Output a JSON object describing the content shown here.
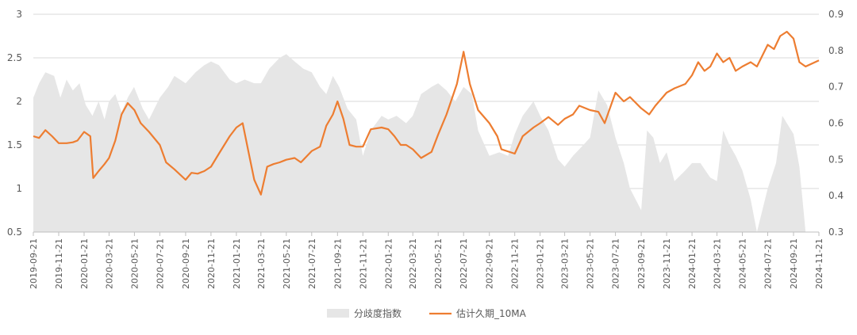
{
  "chart_data": {
    "type": "line",
    "title": "",
    "xlabel": "",
    "ylabel": "",
    "grid": "horizontal",
    "legend_position": "bottom",
    "left_axis": {
      "ticks": [
        "0.5",
        "1",
        "1.5",
        "2",
        "2.5",
        "3"
      ],
      "ylim": [
        0.5,
        3
      ]
    },
    "right_axis": {
      "ticks": [
        "0.3",
        "0.4",
        "0.5",
        "0.6",
        "0.7",
        "0.8",
        "0.9"
      ],
      "ylim": [
        0.3,
        0.9
      ]
    },
    "x_tick_labels": [
      "2019-09-21",
      "2019-11-21",
      "2020-01-21",
      "2020-03-21",
      "2020-05-21",
      "2020-07-21",
      "2020-09-21",
      "2020-11-21",
      "2021-01-21",
      "2021-03-21",
      "2021-05-21",
      "2021-07-21",
      "2021-09-21",
      "2021-11-21",
      "2022-01-21",
      "2022-03-21",
      "2022-05-21",
      "2022-07-21",
      "2022-09-21",
      "2022-11-21",
      "2023-01-21",
      "2023-03-21",
      "2023-05-21",
      "2023-07-21",
      "2023-09-21",
      "2023-11-21",
      "2024-01-21",
      "2024-03-21",
      "2024-05-21",
      "2024-07-21",
      "2024-09-21",
      "2024-11-21"
    ],
    "series": [
      {
        "name": "分歧度指数",
        "type": "area",
        "axis": "right",
        "color": "#e6e6e6",
        "points": [
          [
            "2019-09-21",
            0.67
          ],
          [
            "2019-10-05",
            0.71
          ],
          [
            "2019-10-20",
            0.74
          ],
          [
            "2019-11-10",
            0.73
          ],
          [
            "2019-11-25",
            0.67
          ],
          [
            "2019-12-10",
            0.72
          ],
          [
            "2019-12-25",
            0.69
          ],
          [
            "2020-01-10",
            0.71
          ],
          [
            "2020-01-25",
            0.65
          ],
          [
            "2020-02-10",
            0.62
          ],
          [
            "2020-02-25",
            0.66
          ],
          [
            "2020-03-10",
            0.61
          ],
          [
            "2020-03-21",
            0.66
          ],
          [
            "2020-04-05",
            0.68
          ],
          [
            "2020-04-20",
            0.63
          ],
          [
            "2020-05-05",
            0.67
          ],
          [
            "2020-05-20",
            0.7
          ],
          [
            "2020-06-10",
            0.64
          ],
          [
            "2020-06-25",
            0.61
          ],
          [
            "2020-07-21",
            0.67
          ],
          [
            "2020-08-10",
            0.7
          ],
          [
            "2020-08-25",
            0.73
          ],
          [
            "2020-09-21",
            0.71
          ],
          [
            "2020-10-15",
            0.74
          ],
          [
            "2020-11-05",
            0.76
          ],
          [
            "2020-11-21",
            0.77
          ],
          [
            "2020-12-10",
            0.76
          ],
          [
            "2021-01-05",
            0.72
          ],
          [
            "2021-01-21",
            0.71
          ],
          [
            "2021-02-10",
            0.72
          ],
          [
            "2021-03-05",
            0.71
          ],
          [
            "2021-03-21",
            0.71
          ],
          [
            "2021-04-10",
            0.75
          ],
          [
            "2021-05-05",
            0.78
          ],
          [
            "2021-05-21",
            0.79
          ],
          [
            "2021-06-10",
            0.77
          ],
          [
            "2021-07-01",
            0.75
          ],
          [
            "2021-07-21",
            0.74
          ],
          [
            "2021-08-10",
            0.7
          ],
          [
            "2021-08-25",
            0.68
          ],
          [
            "2021-09-10",
            0.73
          ],
          [
            "2021-09-25",
            0.7
          ],
          [
            "2021-10-15",
            0.64
          ],
          [
            "2021-11-05",
            0.61
          ],
          [
            "2021-11-21",
            0.51
          ],
          [
            "2021-12-10",
            0.58
          ],
          [
            "2022-01-05",
            0.62
          ],
          [
            "2022-01-21",
            0.61
          ],
          [
            "2022-02-10",
            0.62
          ],
          [
            "2022-03-05",
            0.6
          ],
          [
            "2022-03-21",
            0.62
          ],
          [
            "2022-04-10",
            0.68
          ],
          [
            "2022-05-05",
            0.7
          ],
          [
            "2022-05-21",
            0.71
          ],
          [
            "2022-06-10",
            0.69
          ],
          [
            "2022-07-01",
            0.66
          ],
          [
            "2022-07-21",
            0.7
          ],
          [
            "2022-08-10",
            0.68
          ],
          [
            "2022-08-25",
            0.58
          ],
          [
            "2022-09-21",
            0.51
          ],
          [
            "2022-10-15",
            0.52
          ],
          [
            "2022-11-05",
            0.51
          ],
          [
            "2022-11-21",
            0.57
          ],
          [
            "2022-12-10",
            0.62
          ],
          [
            "2023-01-05",
            0.66
          ],
          [
            "2023-01-21",
            0.62
          ],
          [
            "2023-02-10",
            0.58
          ],
          [
            "2023-03-05",
            0.5
          ],
          [
            "2023-03-21",
            0.48
          ],
          [
            "2023-04-10",
            0.51
          ],
          [
            "2023-05-05",
            0.54
          ],
          [
            "2023-05-21",
            0.56
          ],
          [
            "2023-06-10",
            0.69
          ],
          [
            "2023-07-01",
            0.65
          ],
          [
            "2023-07-21",
            0.56
          ],
          [
            "2023-08-10",
            0.49
          ],
          [
            "2023-08-25",
            0.42
          ],
          [
            "2023-09-21",
            0.36
          ],
          [
            "2023-10-05",
            0.58
          ],
          [
            "2023-10-20",
            0.56
          ],
          [
            "2023-11-05",
            0.49
          ],
          [
            "2023-11-21",
            0.52
          ],
          [
            "2023-12-10",
            0.44
          ],
          [
            "2024-01-05",
            0.47
          ],
          [
            "2024-01-21",
            0.49
          ],
          [
            "2024-02-10",
            0.49
          ],
          [
            "2024-03-05",
            0.45
          ],
          [
            "2024-03-21",
            0.44
          ],
          [
            "2024-04-05",
            0.58
          ],
          [
            "2024-04-20",
            0.54
          ],
          [
            "2024-05-05",
            0.51
          ],
          [
            "2024-05-21",
            0.47
          ],
          [
            "2024-06-10",
            0.39
          ],
          [
            "2024-06-25",
            0.3
          ],
          [
            "2024-07-21",
            0.42
          ],
          [
            "2024-08-10",
            0.49
          ],
          [
            "2024-08-25",
            0.62
          ],
          [
            "2024-09-21",
            0.57
          ],
          [
            "2024-10-05",
            0.48
          ],
          [
            "2024-10-20",
            0.3
          ],
          [
            "2024-11-21",
            0.3
          ]
        ]
      },
      {
        "name": "估计久期_10MA",
        "type": "line",
        "axis": "left",
        "color": "#ed7d31",
        "points": [
          [
            "2019-09-21",
            1.6
          ],
          [
            "2019-10-05",
            1.58
          ],
          [
            "2019-10-20",
            1.67
          ],
          [
            "2019-11-05",
            1.6
          ],
          [
            "2019-11-21",
            1.52
          ],
          [
            "2019-12-10",
            1.52
          ],
          [
            "2019-12-25",
            1.53
          ],
          [
            "2020-01-05",
            1.55
          ],
          [
            "2020-01-21",
            1.65
          ],
          [
            "2020-02-05",
            1.6
          ],
          [
            "2020-02-12",
            1.12
          ],
          [
            "2020-02-25",
            1.2
          ],
          [
            "2020-03-10",
            1.28
          ],
          [
            "2020-03-21",
            1.35
          ],
          [
            "2020-04-05",
            1.55
          ],
          [
            "2020-04-20",
            1.85
          ],
          [
            "2020-05-05",
            1.98
          ],
          [
            "2020-05-21",
            1.9
          ],
          [
            "2020-06-05",
            1.75
          ],
          [
            "2020-06-25",
            1.65
          ],
          [
            "2020-07-21",
            1.5
          ],
          [
            "2020-08-05",
            1.3
          ],
          [
            "2020-08-25",
            1.22
          ],
          [
            "2020-09-21",
            1.1
          ],
          [
            "2020-10-05",
            1.18
          ],
          [
            "2020-10-20",
            1.17
          ],
          [
            "2020-11-05",
            1.2
          ],
          [
            "2020-11-21",
            1.25
          ],
          [
            "2020-12-10",
            1.4
          ],
          [
            "2021-01-05",
            1.6
          ],
          [
            "2021-01-21",
            1.7
          ],
          [
            "2021-02-05",
            1.75
          ],
          [
            "2021-02-20",
            1.4
          ],
          [
            "2021-03-05",
            1.1
          ],
          [
            "2021-03-21",
            0.93
          ],
          [
            "2021-04-05",
            1.25
          ],
          [
            "2021-04-20",
            1.28
          ],
          [
            "2021-05-05",
            1.3
          ],
          [
            "2021-05-21",
            1.33
          ],
          [
            "2021-06-10",
            1.35
          ],
          [
            "2021-06-25",
            1.3
          ],
          [
            "2021-07-21",
            1.43
          ],
          [
            "2021-08-10",
            1.48
          ],
          [
            "2021-08-25",
            1.72
          ],
          [
            "2021-09-10",
            1.85
          ],
          [
            "2021-09-21",
            2.0
          ],
          [
            "2021-10-05",
            1.8
          ],
          [
            "2021-10-20",
            1.5
          ],
          [
            "2021-11-05",
            1.48
          ],
          [
            "2021-11-21",
            1.48
          ],
          [
            "2021-12-10",
            1.68
          ],
          [
            "2022-01-05",
            1.7
          ],
          [
            "2022-01-21",
            1.68
          ],
          [
            "2022-02-05",
            1.6
          ],
          [
            "2022-02-20",
            1.5
          ],
          [
            "2022-03-05",
            1.5
          ],
          [
            "2022-03-21",
            1.45
          ],
          [
            "2022-04-10",
            1.35
          ],
          [
            "2022-05-05",
            1.42
          ],
          [
            "2022-05-21",
            1.62
          ],
          [
            "2022-06-10",
            1.85
          ],
          [
            "2022-07-05",
            2.2
          ],
          [
            "2022-07-21",
            2.57
          ],
          [
            "2022-08-05",
            2.2
          ],
          [
            "2022-08-25",
            1.9
          ],
          [
            "2022-09-21",
            1.75
          ],
          [
            "2022-10-10",
            1.6
          ],
          [
            "2022-10-20",
            1.45
          ],
          [
            "2022-11-21",
            1.4
          ],
          [
            "2022-12-10",
            1.6
          ],
          [
            "2023-01-05",
            1.7
          ],
          [
            "2023-01-21",
            1.75
          ],
          [
            "2023-02-10",
            1.82
          ],
          [
            "2023-03-05",
            1.73
          ],
          [
            "2023-03-21",
            1.8
          ],
          [
            "2023-04-10",
            1.85
          ],
          [
            "2023-04-25",
            1.95
          ],
          [
            "2023-05-21",
            1.9
          ],
          [
            "2023-06-10",
            1.88
          ],
          [
            "2023-06-25",
            1.75
          ],
          [
            "2023-07-21",
            2.1
          ],
          [
            "2023-08-10",
            2.0
          ],
          [
            "2023-08-25",
            2.05
          ],
          [
            "2023-09-21",
            1.92
          ],
          [
            "2023-10-10",
            1.85
          ],
          [
            "2023-10-25",
            1.95
          ],
          [
            "2023-11-21",
            2.1
          ],
          [
            "2023-12-10",
            2.15
          ],
          [
            "2024-01-05",
            2.2
          ],
          [
            "2024-01-21",
            2.3
          ],
          [
            "2024-02-05",
            2.45
          ],
          [
            "2024-02-20",
            2.35
          ],
          [
            "2024-03-05",
            2.4
          ],
          [
            "2024-03-21",
            2.55
          ],
          [
            "2024-04-05",
            2.45
          ],
          [
            "2024-04-20",
            2.5
          ],
          [
            "2024-05-05",
            2.35
          ],
          [
            "2024-05-21",
            2.4
          ],
          [
            "2024-06-10",
            2.45
          ],
          [
            "2024-06-25",
            2.4
          ],
          [
            "2024-07-21",
            2.65
          ],
          [
            "2024-08-05",
            2.6
          ],
          [
            "2024-08-20",
            2.75
          ],
          [
            "2024-09-05",
            2.8
          ],
          [
            "2024-09-21",
            2.72
          ],
          [
            "2024-10-05",
            2.45
          ],
          [
            "2024-10-20",
            2.4
          ],
          [
            "2024-11-21",
            2.47
          ]
        ]
      }
    ]
  }
}
